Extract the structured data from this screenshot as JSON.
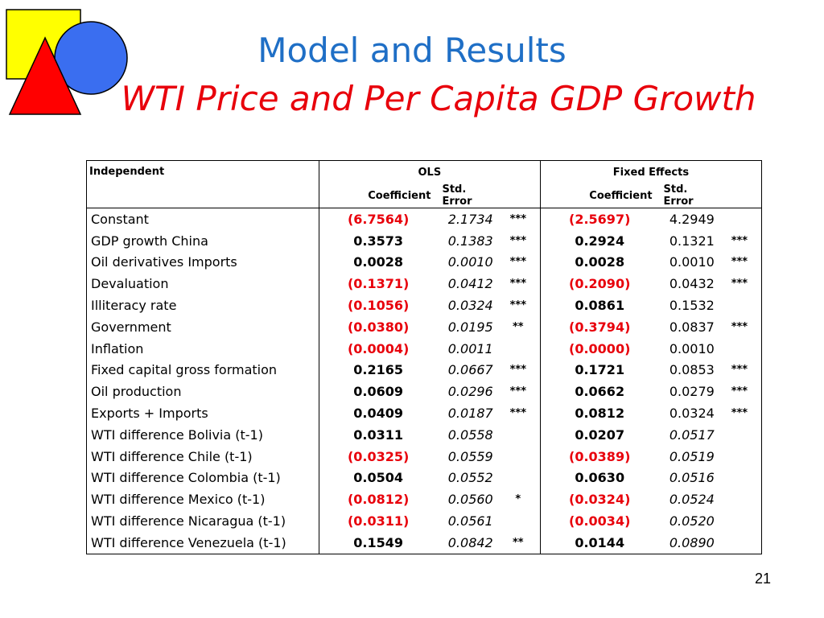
{
  "title": "Model and Results",
  "subtitle": "WTI Price and Per Capita GDP Growth",
  "page_number": "21",
  "colors": {
    "title": "#1f6fc6",
    "subtitle": "#e8000b",
    "negative": "#e8000b",
    "logo_square": "#ffff00",
    "logo_circle": "#3a6ef0",
    "logo_triangle": "#ff0000"
  },
  "table": {
    "header_independent": "Independent",
    "group_ols": "OLS",
    "group_fe": "Fixed Effects",
    "col_coefficient": "Coefficient",
    "col_std_error": "Std. Error",
    "rows": [
      {
        "name": "Constant",
        "ols": {
          "coef": "(6.7564)",
          "se": "2.1734",
          "sig": "***",
          "neg": true,
          "se_italic": true
        },
        "fe": {
          "coef": "(2.5697)",
          "se": "4.2949",
          "sig": "",
          "neg": true,
          "se_italic": false
        }
      },
      {
        "name": "GDP growth China",
        "ols": {
          "coef": "0.3573",
          "se": "0.1383",
          "sig": "***",
          "neg": false,
          "se_italic": true
        },
        "fe": {
          "coef": "0.2924",
          "se": "0.1321",
          "sig": "***",
          "neg": false,
          "se_italic": false
        }
      },
      {
        "name": "Oil derivatives Imports",
        "ols": {
          "coef": "0.0028",
          "se": "0.0010",
          "sig": "***",
          "neg": false,
          "se_italic": true
        },
        "fe": {
          "coef": "0.0028",
          "se": "0.0010",
          "sig": "***",
          "neg": false,
          "se_italic": false
        }
      },
      {
        "name": "Devaluation",
        "ols": {
          "coef": "(0.1371)",
          "se": "0.0412",
          "sig": "***",
          "neg": true,
          "se_italic": true
        },
        "fe": {
          "coef": "(0.2090)",
          "se": "0.0432",
          "sig": "***",
          "neg": true,
          "se_italic": false
        }
      },
      {
        "name": "Illiteracy rate",
        "ols": {
          "coef": "(0.1056)",
          "se": "0.0324",
          "sig": "***",
          "neg": true,
          "se_italic": true
        },
        "fe": {
          "coef": "0.0861",
          "se": "0.1532",
          "sig": "",
          "neg": false,
          "se_italic": false
        }
      },
      {
        "name": "Government",
        "ols": {
          "coef": "(0.0380)",
          "se": "0.0195",
          "sig": "**",
          "neg": true,
          "se_italic": true
        },
        "fe": {
          "coef": "(0.3794)",
          "se": "0.0837",
          "sig": "***",
          "neg": true,
          "se_italic": false
        }
      },
      {
        "name": "Inflation",
        "ols": {
          "coef": "(0.0004)",
          "se": "0.0011",
          "sig": "",
          "neg": true,
          "se_italic": true
        },
        "fe": {
          "coef": "(0.0000)",
          "se": "0.0010",
          "sig": "",
          "neg": true,
          "se_italic": false
        }
      },
      {
        "name": "Fixed capital gross formation",
        "ols": {
          "coef": "0.2165",
          "se": "0.0667",
          "sig": "***",
          "neg": false,
          "se_italic": true
        },
        "fe": {
          "coef": "0.1721",
          "se": "0.0853",
          "sig": "***",
          "neg": false,
          "se_italic": false
        }
      },
      {
        "name": "Oil production",
        "ols": {
          "coef": "0.0609",
          "se": "0.0296",
          "sig": "***",
          "neg": false,
          "se_italic": true
        },
        "fe": {
          "coef": "0.0662",
          "se": "0.0279",
          "sig": "***",
          "neg": false,
          "se_italic": false
        }
      },
      {
        "name": "Exports + Imports",
        "ols": {
          "coef": "0.0409",
          "se": "0.0187",
          "sig": "***",
          "neg": false,
          "se_italic": true
        },
        "fe": {
          "coef": "0.0812",
          "se": "0.0324",
          "sig": "***",
          "neg": false,
          "se_italic": false
        }
      },
      {
        "name": "WTI difference Bolivia (t-1)",
        "ols": {
          "coef": "0.0311",
          "se": "0.0558",
          "sig": "",
          "neg": false,
          "se_italic": true
        },
        "fe": {
          "coef": "0.0207",
          "se": "0.0517",
          "sig": "",
          "neg": false,
          "se_italic": true
        }
      },
      {
        "name": "WTI difference Chile (t-1)",
        "ols": {
          "coef": "(0.0325)",
          "se": "0.0559",
          "sig": "",
          "neg": true,
          "se_italic": true
        },
        "fe": {
          "coef": "(0.0389)",
          "se": "0.0519",
          "sig": "",
          "neg": true,
          "se_italic": true
        }
      },
      {
        "name": "WTI difference Colombia (t-1)",
        "ols": {
          "coef": "0.0504",
          "se": "0.0552",
          "sig": "",
          "neg": false,
          "se_italic": true
        },
        "fe": {
          "coef": "0.0630",
          "se": "0.0516",
          "sig": "",
          "neg": false,
          "se_italic": true
        }
      },
      {
        "name": "WTI difference Mexico (t-1)",
        "ols": {
          "coef": "(0.0812)",
          "se": "0.0560",
          "sig": "*",
          "neg": true,
          "se_italic": true
        },
        "fe": {
          "coef": "(0.0324)",
          "se": "0.0524",
          "sig": "",
          "neg": true,
          "se_italic": true
        }
      },
      {
        "name": "WTI difference Nicaragua (t-1)",
        "ols": {
          "coef": "(0.0311)",
          "se": "0.0561",
          "sig": "",
          "neg": true,
          "se_italic": true
        },
        "fe": {
          "coef": "(0.0034)",
          "se": "0.0520",
          "sig": "",
          "neg": true,
          "se_italic": true
        }
      },
      {
        "name": "WTI difference Venezuela (t-1)",
        "ols": {
          "coef": "0.1549",
          "se": "0.0842",
          "sig": "**",
          "neg": false,
          "se_italic": true
        },
        "fe": {
          "coef": "0.0144",
          "se": "0.0890",
          "sig": "",
          "neg": false,
          "se_italic": true
        }
      }
    ]
  }
}
